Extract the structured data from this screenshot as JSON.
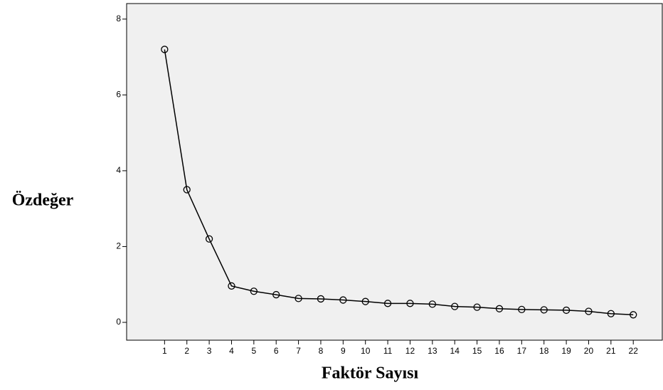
{
  "chart_data": {
    "type": "line",
    "x": [
      1,
      2,
      3,
      4,
      5,
      6,
      7,
      8,
      9,
      10,
      11,
      12,
      13,
      14,
      15,
      16,
      17,
      18,
      19,
      20,
      21,
      22
    ],
    "values": [
      7.2,
      3.5,
      2.2,
      0.96,
      0.82,
      0.73,
      0.63,
      0.62,
      0.59,
      0.55,
      0.5,
      0.5,
      0.48,
      0.42,
      0.4,
      0.36,
      0.34,
      0.33,
      0.32,
      0.29,
      0.23,
      0.2
    ],
    "color": "#000000",
    "xlim": [
      -0.7,
      23.3
    ],
    "xticks": [
      1,
      2,
      3,
      4,
      5,
      6,
      7,
      8,
      9,
      10,
      11,
      12,
      13,
      14,
      15,
      16,
      17,
      18,
      19,
      20,
      21,
      22
    ],
    "ylim": [
      -0.47,
      8.41
    ],
    "yticks": [
      0,
      2,
      4,
      6,
      8
    ],
    "x_label": "Faktör Sayısı",
    "y_label": "Özdeğer"
  }
}
